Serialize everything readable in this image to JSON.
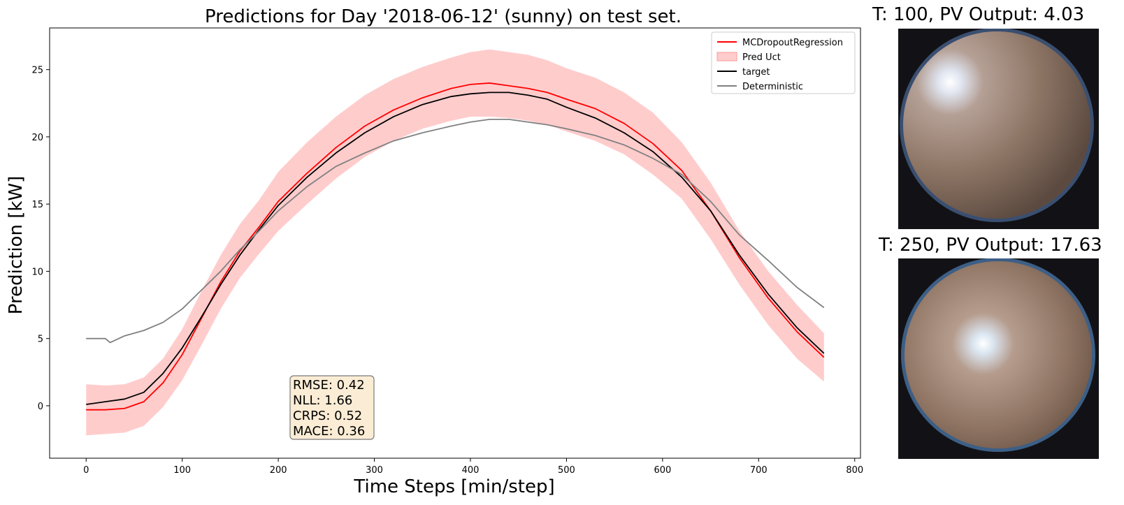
{
  "chart_data": {
    "type": "line",
    "title": "Predictions for Day '2018-06-12' (sunny) on test set.",
    "xlabel": "Time Steps [min/step]",
    "ylabel": "Prediction [kW]",
    "xlim": [
      -38,
      806
    ],
    "ylim": [
      -3.9,
      28.1
    ],
    "xticks": [
      0,
      100,
      200,
      300,
      400,
      500,
      600,
      700,
      800
    ],
    "yticks": [
      0,
      5,
      10,
      15,
      20,
      25
    ],
    "legend_position": "upper right",
    "series": [
      {
        "name": "MCDropoutRegression",
        "kind": "line",
        "color": "#ff0000",
        "x": [
          0,
          20,
          40,
          60,
          80,
          100,
          120,
          140,
          160,
          180,
          200,
          230,
          260,
          290,
          320,
          350,
          380,
          400,
          420,
          440,
          460,
          480,
          500,
          530,
          560,
          590,
          620,
          650,
          680,
          710,
          740,
          768
        ],
        "y": [
          -0.3,
          -0.3,
          -0.2,
          0.3,
          1.7,
          3.8,
          6.5,
          9.2,
          11.5,
          13.3,
          15.2,
          17.3,
          19.2,
          20.8,
          22.0,
          22.9,
          23.6,
          23.9,
          24.0,
          23.8,
          23.6,
          23.3,
          22.8,
          22.1,
          21.0,
          19.5,
          17.5,
          14.5,
          11.0,
          8.0,
          5.5,
          3.6
        ]
      },
      {
        "name": "Pred Uct",
        "kind": "band",
        "color": "#ff9999",
        "x": [
          0,
          20,
          40,
          60,
          80,
          100,
          120,
          140,
          160,
          180,
          200,
          230,
          260,
          290,
          320,
          350,
          380,
          400,
          420,
          440,
          460,
          480,
          500,
          530,
          560,
          590,
          620,
          650,
          680,
          710,
          740,
          768
        ],
        "lower": [
          -2.2,
          -2.1,
          -2.0,
          -1.5,
          -0.1,
          1.9,
          4.5,
          7.2,
          9.5,
          11.3,
          13.0,
          15.0,
          16.9,
          18.5,
          19.7,
          20.6,
          21.2,
          21.5,
          21.5,
          21.4,
          21.2,
          20.9,
          20.4,
          19.7,
          18.7,
          17.2,
          15.4,
          12.4,
          9.0,
          6.0,
          3.5,
          1.8
        ],
        "upper": [
          1.6,
          1.5,
          1.6,
          2.1,
          3.5,
          5.7,
          8.5,
          11.2,
          13.5,
          15.3,
          17.4,
          19.6,
          21.5,
          23.1,
          24.3,
          25.2,
          25.9,
          26.3,
          26.5,
          26.3,
          26.1,
          25.7,
          25.1,
          24.4,
          23.3,
          21.8,
          19.6,
          16.6,
          13.0,
          10.0,
          7.5,
          5.4
        ]
      },
      {
        "name": "target",
        "kind": "line",
        "color": "#000000",
        "x": [
          0,
          20,
          40,
          60,
          80,
          100,
          120,
          140,
          160,
          180,
          200,
          230,
          260,
          290,
          320,
          350,
          380,
          400,
          420,
          440,
          460,
          480,
          500,
          530,
          560,
          590,
          620,
          650,
          680,
          710,
          740,
          768
        ],
        "y": [
          0.1,
          0.3,
          0.5,
          1.0,
          2.4,
          4.3,
          6.6,
          9.0,
          11.2,
          13.1,
          14.9,
          17.0,
          18.8,
          20.3,
          21.5,
          22.4,
          23.0,
          23.2,
          23.3,
          23.3,
          23.1,
          22.8,
          22.2,
          21.4,
          20.3,
          18.9,
          17.0,
          14.5,
          11.2,
          8.3,
          5.8,
          3.9
        ]
      },
      {
        "name": "Deterministic",
        "kind": "line",
        "color": "#808080",
        "x": [
          0,
          20,
          25,
          40,
          60,
          80,
          100,
          120,
          140,
          160,
          180,
          200,
          230,
          260,
          290,
          320,
          350,
          380,
          400,
          420,
          440,
          460,
          480,
          500,
          530,
          560,
          590,
          620,
          650,
          680,
          710,
          740,
          768
        ],
        "y": [
          5.0,
          5.0,
          4.7,
          5.2,
          5.6,
          6.2,
          7.2,
          8.6,
          10.0,
          11.6,
          13.0,
          14.5,
          16.3,
          17.8,
          18.8,
          19.7,
          20.3,
          20.8,
          21.1,
          21.3,
          21.3,
          21.1,
          20.9,
          20.6,
          20.1,
          19.4,
          18.4,
          17.2,
          15.2,
          12.7,
          10.8,
          8.8,
          7.3
        ]
      }
    ],
    "annotation": {
      "lines": [
        "RMSE: 0.42",
        "NLL: 1.66",
        "CRPS: 0.52",
        "MACE: 0.36"
      ],
      "box_color": "#fbecd5"
    }
  },
  "images": [
    {
      "title": "T: 100, PV Output: 4.03"
    },
    {
      "title": "T: 250, PV Output: 17.63"
    }
  ]
}
